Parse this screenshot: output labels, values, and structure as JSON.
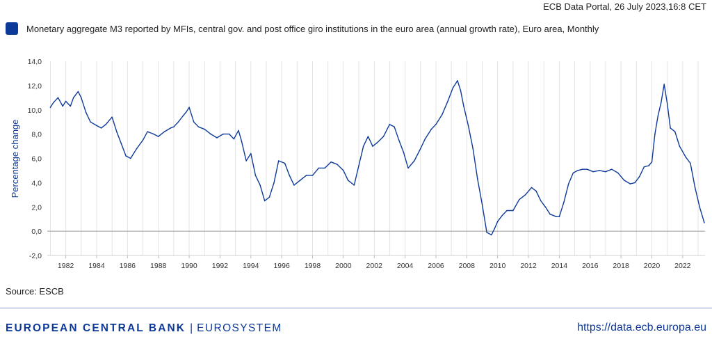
{
  "header": {
    "portal_stamp": "ECB Data Portal, 26 July 2023,16:8 CET"
  },
  "legend": {
    "label": "Monetary aggregate M3 reported by MFIs, central gov. and post office giro institutions in the euro area (annual growth rate), Euro area, Monthly",
    "color": "#0d3a99"
  },
  "chart_data": {
    "type": "line",
    "title": "",
    "ylabel": "Percentage change",
    "xlabel": "",
    "ylim": [
      -2.0,
      14.0
    ],
    "yticks": [
      "-2,0",
      "0,0",
      "2,0",
      "4,0",
      "6,0",
      "8,0",
      "10,0",
      "12,0",
      "14,0"
    ],
    "xticks": [
      "1982",
      "1984",
      "1986",
      "1988",
      "1990",
      "1992",
      "1994",
      "1996",
      "1998",
      "2000",
      "2002",
      "2004",
      "2006",
      "2008",
      "2010",
      "2012",
      "2014",
      "2016",
      "2018",
      "2020",
      "2022"
    ],
    "grid": "vertical",
    "series": [
      {
        "name": "M3 annual growth rate",
        "color": "#0d3a99",
        "x": [
          1981.0,
          1981.2,
          1981.5,
          1981.8,
          1982.0,
          1982.3,
          1982.5,
          1982.8,
          1983.0,
          1983.3,
          1983.6,
          1984.0,
          1984.3,
          1984.6,
          1985.0,
          1985.3,
          1985.6,
          1985.9,
          1986.2,
          1986.6,
          1987.0,
          1987.3,
          1987.7,
          1988.0,
          1988.4,
          1988.8,
          1989.0,
          1989.3,
          1989.6,
          1989.8,
          1990.0,
          1990.3,
          1990.6,
          1991.0,
          1991.4,
          1991.8,
          1992.2,
          1992.6,
          1992.9,
          1993.2,
          1993.4,
          1993.7,
          1994.0,
          1994.3,
          1994.6,
          1994.9,
          1995.2,
          1995.5,
          1995.8,
          1996.2,
          1996.5,
          1996.8,
          1997.2,
          1997.6,
          1998.0,
          1998.4,
          1998.8,
          1999.2,
          1999.6,
          2000.0,
          2000.3,
          2000.7,
          2001.0,
          2001.3,
          2001.6,
          2001.9,
          2002.2,
          2002.6,
          2003.0,
          2003.3,
          2003.6,
          2003.9,
          2004.2,
          2004.6,
          2005.0,
          2005.3,
          2005.7,
          2006.0,
          2006.4,
          2006.8,
          2007.1,
          2007.4,
          2007.6,
          2007.8,
          2008.1,
          2008.4,
          2008.7,
          2009.0,
          2009.3,
          2009.6,
          2009.8,
          2010.0,
          2010.3,
          2010.6,
          2011.0,
          2011.4,
          2011.8,
          2012.2,
          2012.5,
          2012.8,
          2013.1,
          2013.4,
          2013.8,
          2014.0,
          2014.3,
          2014.6,
          2014.9,
          2015.2,
          2015.5,
          2015.8,
          2016.2,
          2016.6,
          2017.0,
          2017.4,
          2017.8,
          2018.2,
          2018.6,
          2018.9,
          2019.2,
          2019.5,
          2019.8,
          2020.0,
          2020.2,
          2020.4,
          2020.6,
          2020.8,
          2021.0,
          2021.2,
          2021.5,
          2021.8,
          2022.2,
          2022.5,
          2022.8,
          2023.1,
          2023.4
        ],
        "values": [
          10.2,
          10.6,
          11.0,
          10.3,
          10.7,
          10.3,
          11.0,
          11.5,
          11.0,
          9.8,
          9.0,
          8.7,
          8.5,
          8.8,
          9.4,
          8.2,
          7.2,
          6.2,
          6.0,
          6.8,
          7.5,
          8.2,
          8.0,
          7.8,
          8.2,
          8.5,
          8.6,
          9.0,
          9.5,
          9.8,
          10.2,
          9.0,
          8.6,
          8.4,
          8.0,
          7.7,
          8.0,
          8.0,
          7.6,
          8.3,
          7.4,
          5.8,
          6.4,
          4.6,
          3.8,
          2.5,
          2.8,
          4.0,
          5.8,
          5.6,
          4.6,
          3.8,
          4.2,
          4.6,
          4.6,
          5.2,
          5.2,
          5.7,
          5.5,
          5.0,
          4.2,
          3.8,
          5.4,
          7.0,
          7.8,
          7.0,
          7.3,
          7.8,
          8.8,
          8.6,
          7.5,
          6.5,
          5.2,
          5.8,
          6.8,
          7.6,
          8.4,
          8.8,
          9.6,
          10.8,
          11.8,
          12.4,
          11.6,
          10.3,
          8.7,
          6.8,
          4.3,
          2.2,
          -0.1,
          -0.3,
          0.2,
          0.8,
          1.3,
          1.7,
          1.7,
          2.6,
          3.0,
          3.6,
          3.3,
          2.5,
          2.0,
          1.4,
          1.2,
          1.2,
          2.4,
          3.9,
          4.8,
          5.0,
          5.1,
          5.1,
          4.9,
          5.0,
          4.9,
          5.1,
          4.8,
          4.2,
          3.9,
          4.0,
          4.5,
          5.3,
          5.4,
          5.7,
          8.0,
          9.5,
          10.6,
          12.1,
          10.5,
          8.5,
          8.2,
          7.0,
          6.1,
          5.6,
          3.6,
          2.0,
          0.7
        ]
      }
    ]
  },
  "footer": {
    "source": "Source: ESCB",
    "org_name": "EUROPEAN CENTRAL BANK",
    "separator": "|",
    "org_sub": "EUROSYSTEM",
    "url": "https://data.ecb.europa.eu"
  }
}
